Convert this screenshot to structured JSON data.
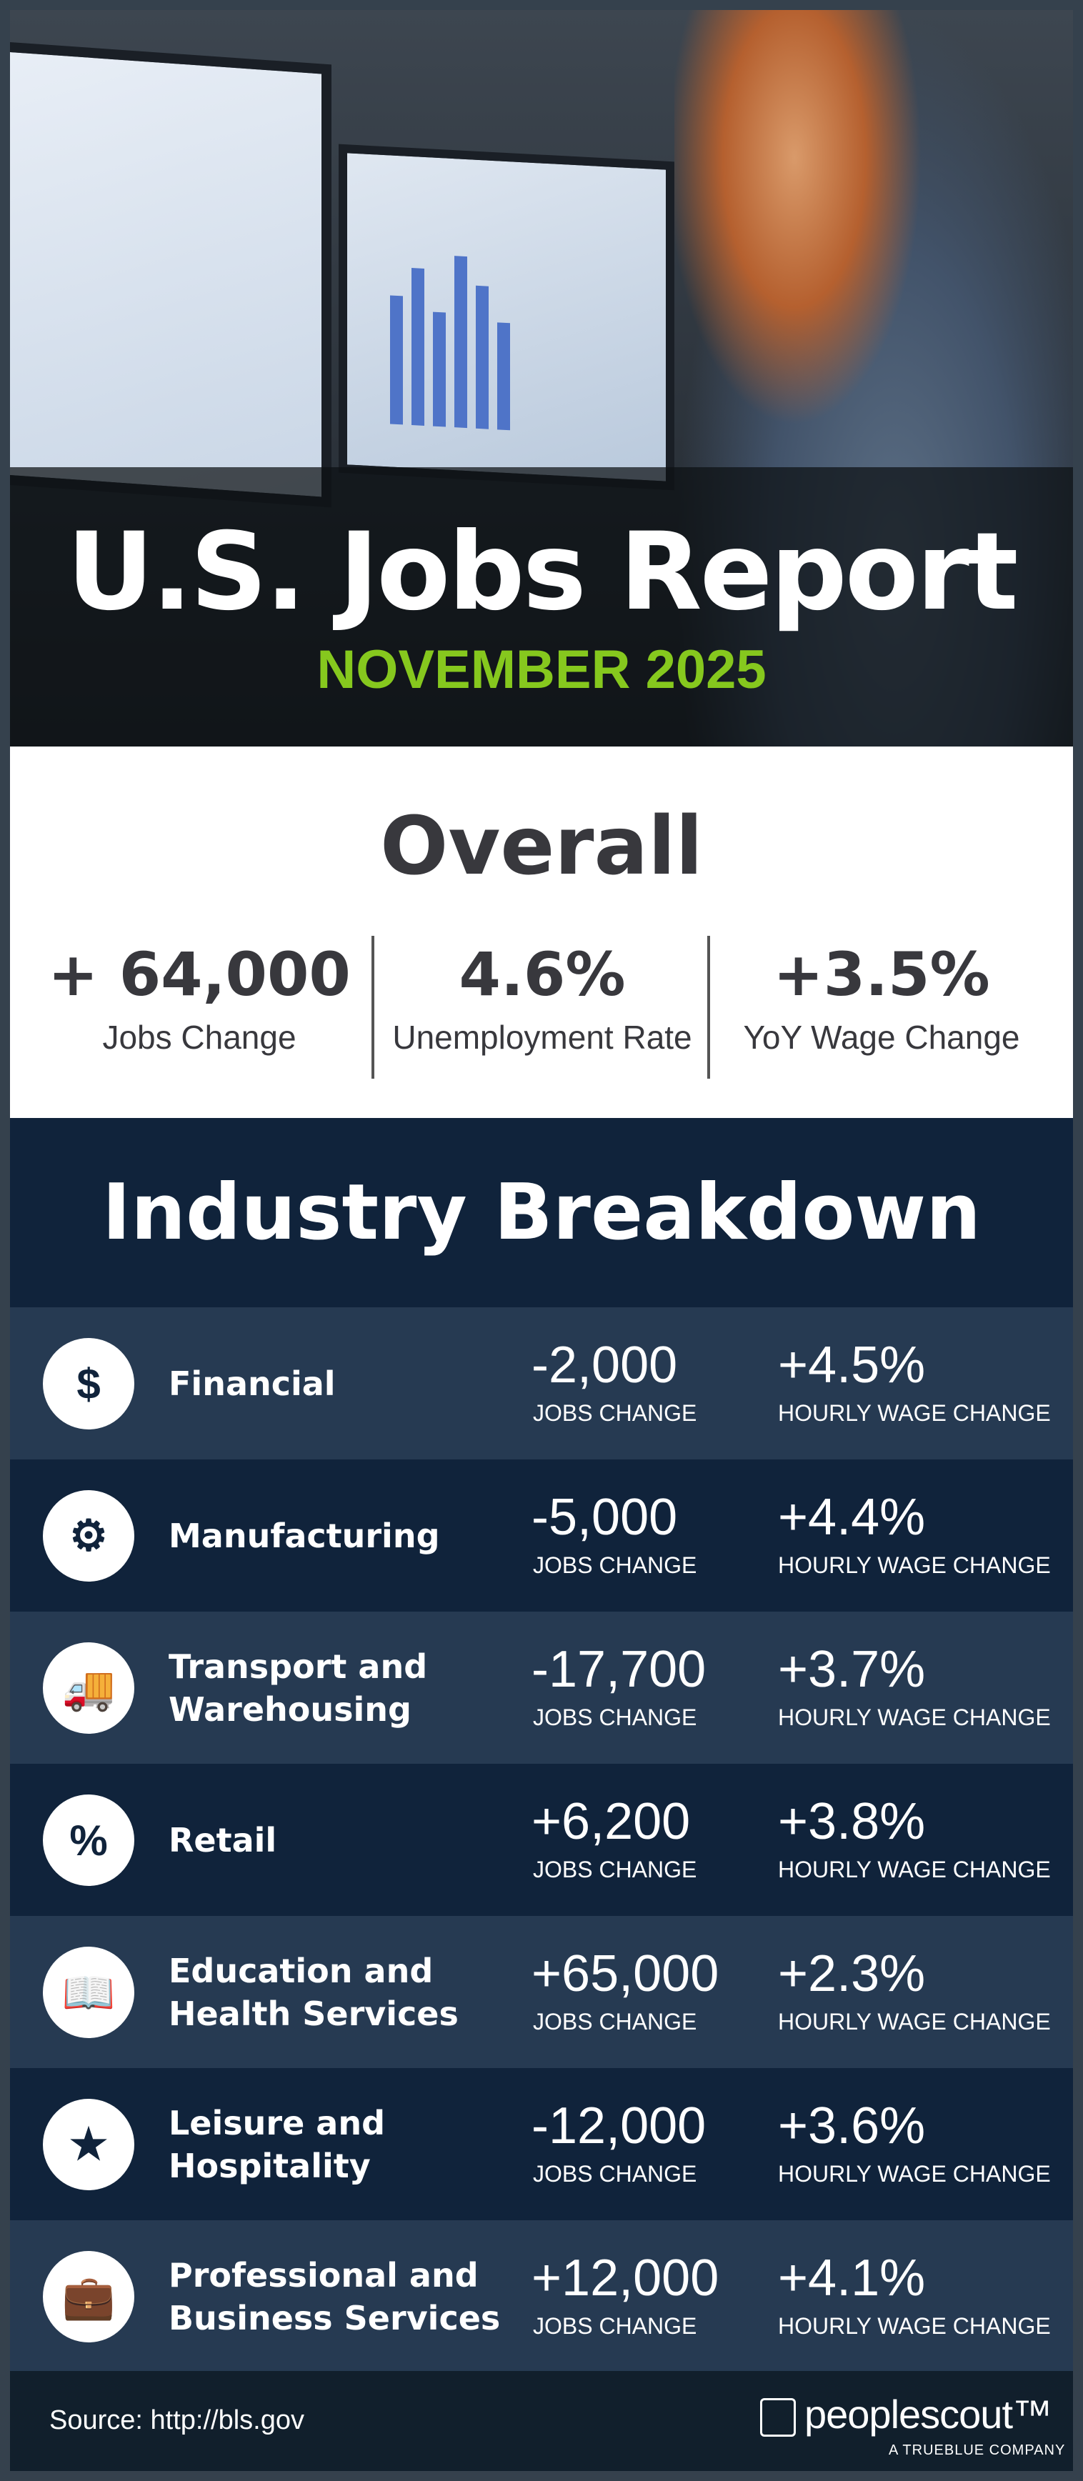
{
  "header": {
    "title": "U.S. Jobs Report",
    "subtitle": "NOVEMBER 2025"
  },
  "overall": {
    "title": "Overall",
    "stats": [
      {
        "value": "+ 64,000",
        "label": "Jobs Change"
      },
      {
        "value": "4.6%",
        "label": "Unemployment Rate"
      },
      {
        "value": "+3.5%",
        "label": "YoY Wage Change"
      }
    ]
  },
  "industry": {
    "title": "Industry Breakdown",
    "jobs_label": "JOBS CHANGE",
    "wage_label": "HOURLY WAGE CHANGE",
    "rows": [
      {
        "name": "Financial",
        "icon": "money-bag-icon",
        "jobs": "-2,000",
        "wage": "+4.5%"
      },
      {
        "name": "Manufacturing",
        "icon": "gear-wrench-icon",
        "jobs": "-5,000",
        "wage": "+4.4%"
      },
      {
        "name": "Transport and Warehousing",
        "icon": "truck-icon",
        "jobs": "-17,700",
        "wage": "+3.7%"
      },
      {
        "name": "Retail",
        "icon": "price-tag-icon",
        "jobs": "+6,200",
        "wage": "+3.8%"
      },
      {
        "name": "Education and Health Services",
        "icon": "book-icon",
        "jobs": "+65,000",
        "wage": "+2.3%"
      },
      {
        "name": "Leisure and Hospitality",
        "icon": "bed-stars-icon",
        "jobs": "-12,000",
        "wage": "+3.6%"
      },
      {
        "name": "Professional and Business Services",
        "icon": "briefcase-icon",
        "jobs": "+12,000",
        "wage": "+4.1%"
      }
    ]
  },
  "footer": {
    "source": "Source: http://bls.gov",
    "logo": "peoplescout™",
    "tagline": "A TRUEBLUE COMPANY"
  },
  "colors": {
    "accent": "#86c81e",
    "navy": "#10233b",
    "row_alt": "#263a52"
  }
}
